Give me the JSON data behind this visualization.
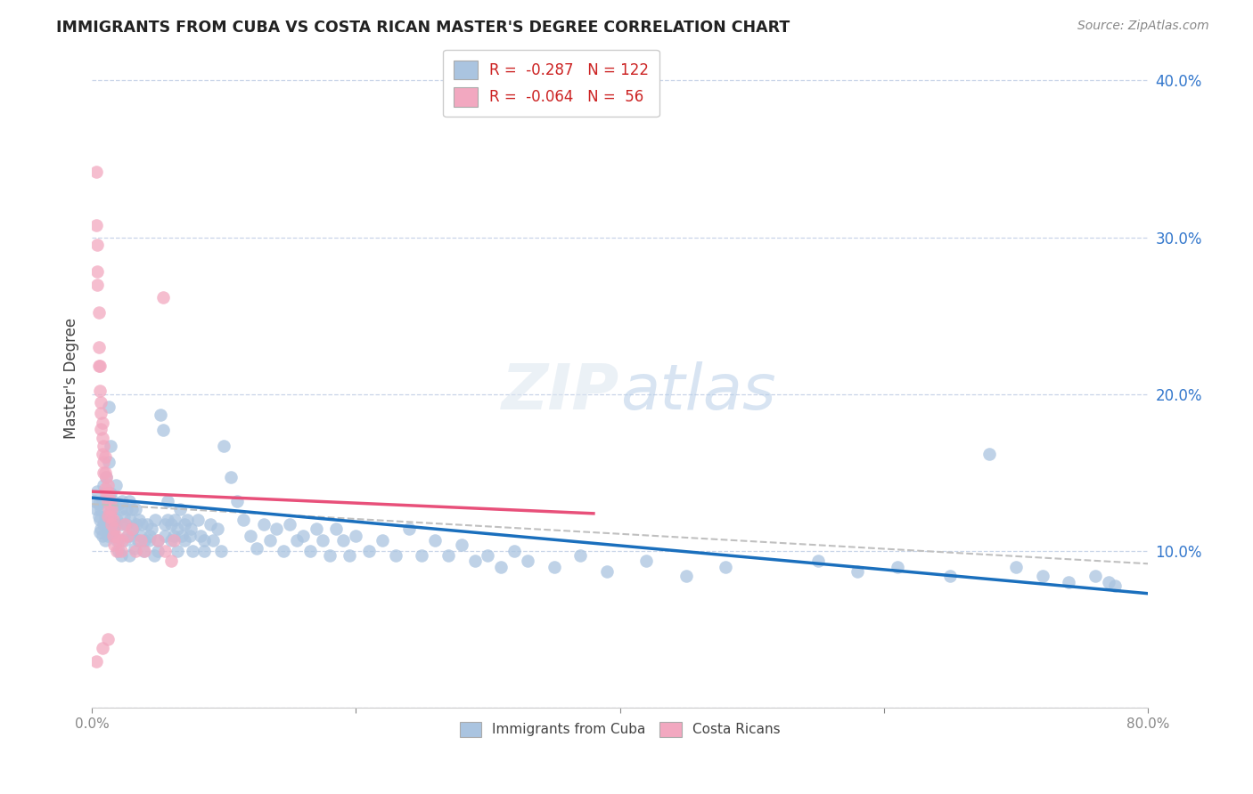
{
  "title": "IMMIGRANTS FROM CUBA VS COSTA RICAN MASTER'S DEGREE CORRELATION CHART",
  "source": "Source: ZipAtlas.com",
  "ylabel": "Master's Degree",
  "legend_label1": "Immigrants from Cuba",
  "legend_label2": "Costa Ricans",
  "color_blue": "#aac4e0",
  "color_pink": "#f2a8c0",
  "line_blue": "#1a6fbd",
  "line_pink": "#e8507a",
  "line_dashed_color": "#c0c0c0",
  "background": "#ffffff",
  "grid_color": "#c8d4e8",
  "xlim": [
    0.0,
    0.8
  ],
  "ylim": [
    0.0,
    0.42
  ],
  "blue_line_x": [
    0.0,
    0.8
  ],
  "blue_line_y": [
    0.134,
    0.073
  ],
  "pink_line_x": [
    0.0,
    0.38
  ],
  "pink_line_y": [
    0.138,
    0.124
  ],
  "dash_line_x": [
    0.0,
    0.8
  ],
  "dash_line_y": [
    0.13,
    0.092
  ],
  "blue_points": [
    [
      0.002,
      0.132
    ],
    [
      0.003,
      0.127
    ],
    [
      0.004,
      0.138
    ],
    [
      0.005,
      0.13
    ],
    [
      0.005,
      0.122
    ],
    [
      0.006,
      0.112
    ],
    [
      0.006,
      0.12
    ],
    [
      0.007,
      0.127
    ],
    [
      0.007,
      0.114
    ],
    [
      0.008,
      0.132
    ],
    [
      0.008,
      0.11
    ],
    [
      0.009,
      0.142
    ],
    [
      0.009,
      0.117
    ],
    [
      0.01,
      0.107
    ],
    [
      0.01,
      0.122
    ],
    [
      0.011,
      0.147
    ],
    [
      0.011,
      0.12
    ],
    [
      0.012,
      0.114
    ],
    [
      0.012,
      0.11
    ],
    [
      0.013,
      0.192
    ],
    [
      0.013,
      0.157
    ],
    [
      0.014,
      0.167
    ],
    [
      0.014,
      0.137
    ],
    [
      0.015,
      0.127
    ],
    [
      0.015,
      0.12
    ],
    [
      0.016,
      0.132
    ],
    [
      0.016,
      0.114
    ],
    [
      0.017,
      0.127
    ],
    [
      0.017,
      0.11
    ],
    [
      0.018,
      0.142
    ],
    [
      0.018,
      0.117
    ],
    [
      0.019,
      0.12
    ],
    [
      0.019,
      0.107
    ],
    [
      0.02,
      0.13
    ],
    [
      0.02,
      0.1
    ],
    [
      0.022,
      0.127
    ],
    [
      0.022,
      0.117
    ],
    [
      0.022,
      0.097
    ],
    [
      0.023,
      0.132
    ],
    [
      0.024,
      0.122
    ],
    [
      0.025,
      0.107
    ],
    [
      0.026,
      0.127
    ],
    [
      0.026,
      0.117
    ],
    [
      0.027,
      0.11
    ],
    [
      0.028,
      0.132
    ],
    [
      0.028,
      0.097
    ],
    [
      0.029,
      0.12
    ],
    [
      0.03,
      0.127
    ],
    [
      0.03,
      0.11
    ],
    [
      0.031,
      0.114
    ],
    [
      0.032,
      0.102
    ],
    [
      0.033,
      0.127
    ],
    [
      0.034,
      0.117
    ],
    [
      0.035,
      0.107
    ],
    [
      0.036,
      0.12
    ],
    [
      0.037,
      0.11
    ],
    [
      0.038,
      0.117
    ],
    [
      0.039,
      0.1
    ],
    [
      0.04,
      0.107
    ],
    [
      0.042,
      0.117
    ],
    [
      0.043,
      0.107
    ],
    [
      0.044,
      0.11
    ],
    [
      0.045,
      0.114
    ],
    [
      0.047,
      0.097
    ],
    [
      0.048,
      0.12
    ],
    [
      0.05,
      0.107
    ],
    [
      0.05,
      0.1
    ],
    [
      0.052,
      0.187
    ],
    [
      0.054,
      0.177
    ],
    [
      0.055,
      0.117
    ],
    [
      0.055,
      0.11
    ],
    [
      0.057,
      0.132
    ],
    [
      0.057,
      0.12
    ],
    [
      0.06,
      0.117
    ],
    [
      0.06,
      0.107
    ],
    [
      0.062,
      0.11
    ],
    [
      0.063,
      0.12
    ],
    [
      0.065,
      0.114
    ],
    [
      0.065,
      0.1
    ],
    [
      0.067,
      0.127
    ],
    [
      0.068,
      0.11
    ],
    [
      0.07,
      0.117
    ],
    [
      0.07,
      0.107
    ],
    [
      0.072,
      0.12
    ],
    [
      0.074,
      0.11
    ],
    [
      0.075,
      0.114
    ],
    [
      0.076,
      0.1
    ],
    [
      0.08,
      0.12
    ],
    [
      0.082,
      0.11
    ],
    [
      0.085,
      0.107
    ],
    [
      0.085,
      0.1
    ],
    [
      0.09,
      0.117
    ],
    [
      0.092,
      0.107
    ],
    [
      0.095,
      0.114
    ],
    [
      0.098,
      0.1
    ],
    [
      0.1,
      0.167
    ],
    [
      0.105,
      0.147
    ],
    [
      0.11,
      0.132
    ],
    [
      0.115,
      0.12
    ],
    [
      0.12,
      0.11
    ],
    [
      0.125,
      0.102
    ],
    [
      0.13,
      0.117
    ],
    [
      0.135,
      0.107
    ],
    [
      0.14,
      0.114
    ],
    [
      0.145,
      0.1
    ],
    [
      0.15,
      0.117
    ],
    [
      0.155,
      0.107
    ],
    [
      0.16,
      0.11
    ],
    [
      0.165,
      0.1
    ],
    [
      0.17,
      0.114
    ],
    [
      0.175,
      0.107
    ],
    [
      0.18,
      0.097
    ],
    [
      0.185,
      0.114
    ],
    [
      0.19,
      0.107
    ],
    [
      0.195,
      0.097
    ],
    [
      0.2,
      0.11
    ],
    [
      0.21,
      0.1
    ],
    [
      0.22,
      0.107
    ],
    [
      0.23,
      0.097
    ],
    [
      0.24,
      0.114
    ],
    [
      0.25,
      0.097
    ],
    [
      0.26,
      0.107
    ],
    [
      0.27,
      0.097
    ],
    [
      0.28,
      0.104
    ],
    [
      0.29,
      0.094
    ],
    [
      0.3,
      0.097
    ],
    [
      0.31,
      0.09
    ],
    [
      0.32,
      0.1
    ],
    [
      0.33,
      0.094
    ],
    [
      0.35,
      0.09
    ],
    [
      0.37,
      0.097
    ],
    [
      0.39,
      0.087
    ],
    [
      0.42,
      0.094
    ],
    [
      0.45,
      0.084
    ],
    [
      0.48,
      0.09
    ],
    [
      0.55,
      0.094
    ],
    [
      0.58,
      0.087
    ],
    [
      0.61,
      0.09
    ],
    [
      0.65,
      0.084
    ],
    [
      0.68,
      0.162
    ],
    [
      0.7,
      0.09
    ],
    [
      0.72,
      0.084
    ],
    [
      0.74,
      0.08
    ],
    [
      0.76,
      0.084
    ],
    [
      0.77,
      0.08
    ],
    [
      0.775,
      0.078
    ]
  ],
  "pink_points": [
    [
      0.003,
      0.342
    ],
    [
      0.004,
      0.27
    ],
    [
      0.004,
      0.295
    ],
    [
      0.005,
      0.252
    ],
    [
      0.003,
      0.308
    ],
    [
      0.004,
      0.278
    ],
    [
      0.005,
      0.23
    ],
    [
      0.005,
      0.218
    ],
    [
      0.006,
      0.218
    ],
    [
      0.006,
      0.202
    ],
    [
      0.007,
      0.195
    ],
    [
      0.007,
      0.188
    ],
    [
      0.007,
      0.178
    ],
    [
      0.008,
      0.182
    ],
    [
      0.008,
      0.172
    ],
    [
      0.008,
      0.162
    ],
    [
      0.009,
      0.167
    ],
    [
      0.009,
      0.157
    ],
    [
      0.009,
      0.15
    ],
    [
      0.01,
      0.16
    ],
    [
      0.01,
      0.15
    ],
    [
      0.01,
      0.14
    ],
    [
      0.011,
      0.147
    ],
    [
      0.011,
      0.137
    ],
    [
      0.012,
      0.142
    ],
    [
      0.012,
      0.132
    ],
    [
      0.012,
      0.122
    ],
    [
      0.013,
      0.137
    ],
    [
      0.013,
      0.127
    ],
    [
      0.014,
      0.132
    ],
    [
      0.014,
      0.122
    ],
    [
      0.015,
      0.127
    ],
    [
      0.015,
      0.117
    ],
    [
      0.016,
      0.12
    ],
    [
      0.016,
      0.11
    ],
    [
      0.017,
      0.114
    ],
    [
      0.017,
      0.104
    ],
    [
      0.018,
      0.11
    ],
    [
      0.019,
      0.1
    ],
    [
      0.02,
      0.107
    ],
    [
      0.022,
      0.1
    ],
    [
      0.023,
      0.107
    ],
    [
      0.025,
      0.117
    ],
    [
      0.027,
      0.11
    ],
    [
      0.03,
      0.114
    ],
    [
      0.033,
      0.1
    ],
    [
      0.037,
      0.107
    ],
    [
      0.04,
      0.1
    ],
    [
      0.05,
      0.107
    ],
    [
      0.055,
      0.1
    ],
    [
      0.06,
      0.094
    ],
    [
      0.062,
      0.107
    ],
    [
      0.003,
      0.03
    ],
    [
      0.008,
      0.038
    ],
    [
      0.012,
      0.044
    ],
    [
      0.054,
      0.262
    ]
  ]
}
